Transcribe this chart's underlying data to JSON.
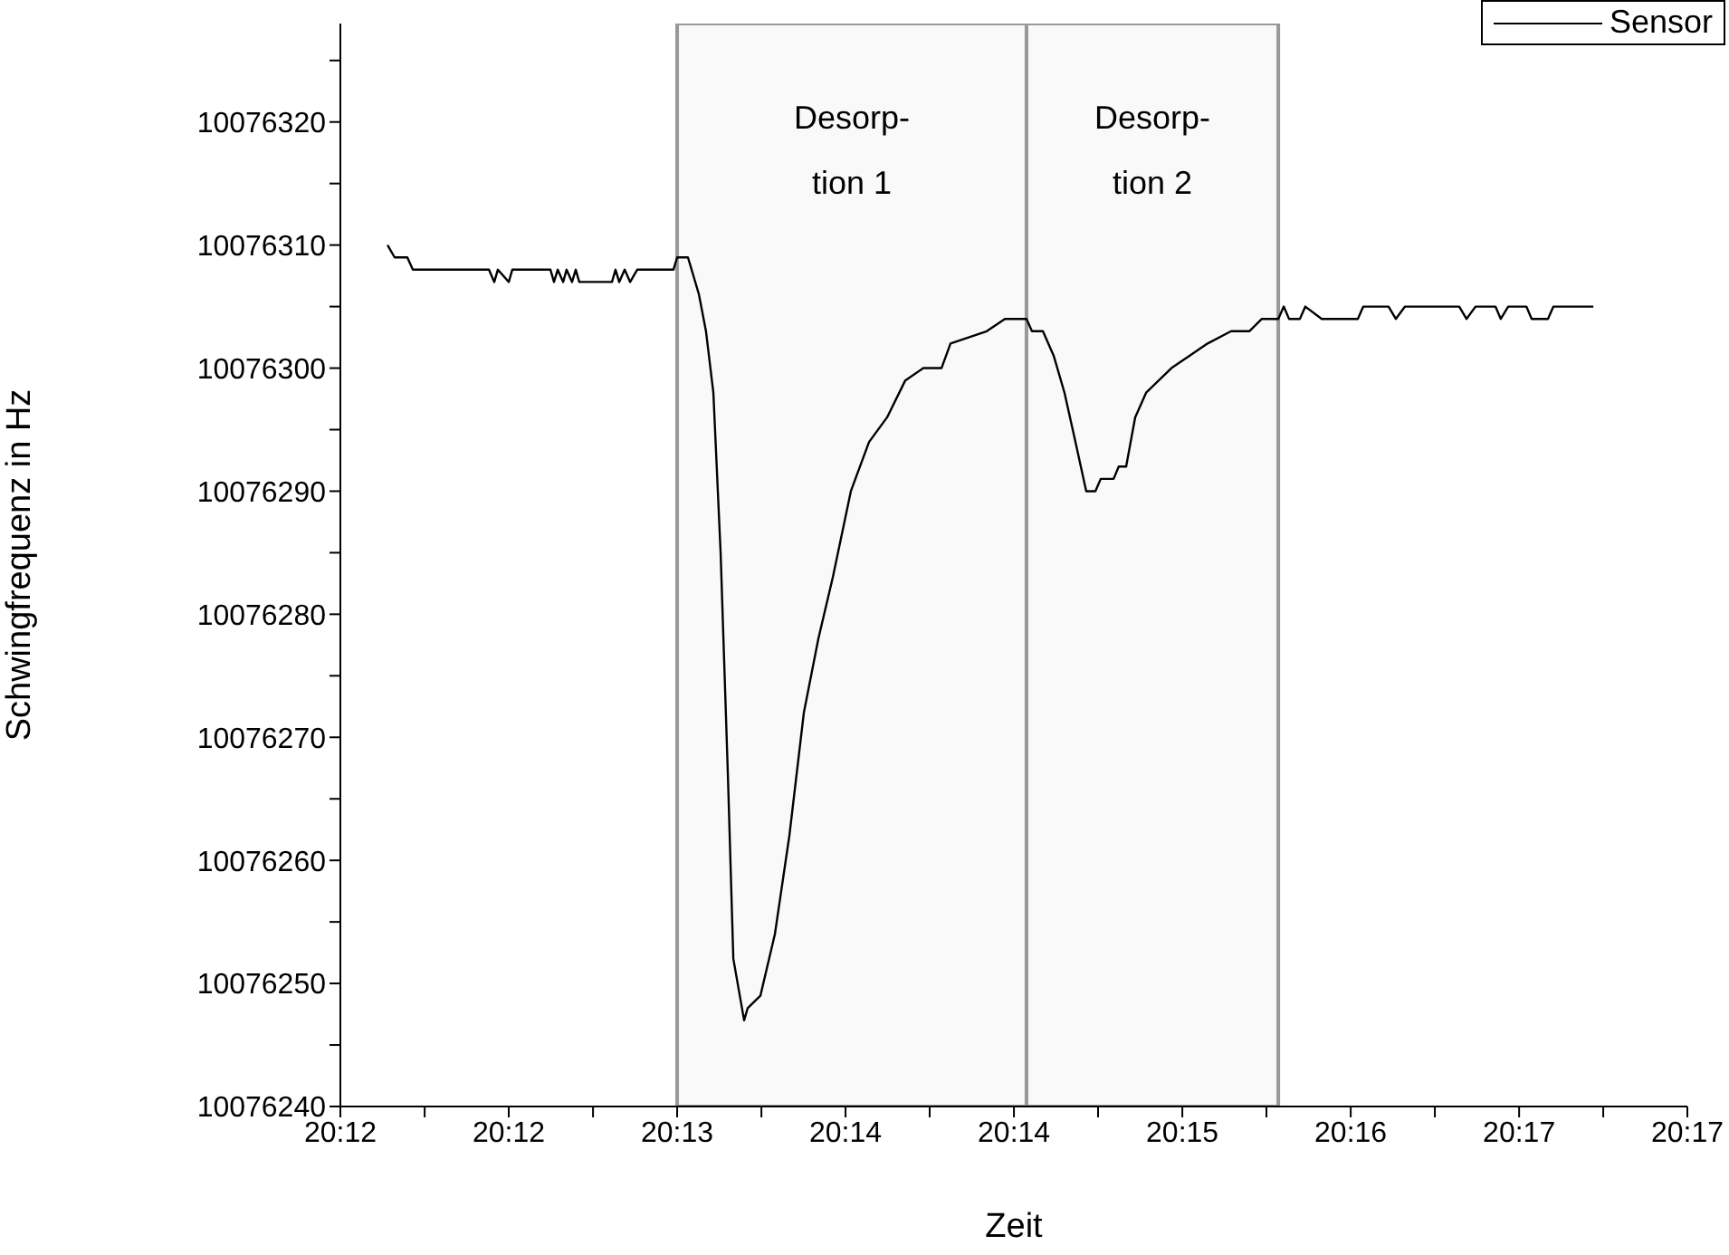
{
  "chart_data": {
    "type": "line",
    "xlabel": "Zeit",
    "ylabel": "Schwingfrequenz in Hz",
    "xlim": [
      20.19583,
      20.28694
    ],
    "xticks": [
      {
        "value": 20.19583,
        "label": "20:12"
      },
      {
        "value": 20.20153,
        "label": null
      },
      {
        "value": 20.20722,
        "label": "20:12"
      },
      {
        "value": 20.21292,
        "label": null
      },
      {
        "value": 20.21861,
        "label": "20:13"
      },
      {
        "value": 20.22431,
        "label": null
      },
      {
        "value": 20.23,
        "label": "20:14"
      },
      {
        "value": 20.23569,
        "label": null
      },
      {
        "value": 20.24139,
        "label": "20:14"
      },
      {
        "value": 20.24708,
        "label": null
      },
      {
        "value": 20.25278,
        "label": "20:15"
      },
      {
        "value": 20.25847,
        "label": null
      },
      {
        "value": 20.26417,
        "label": "20:16"
      },
      {
        "value": 20.26986,
        "label": null
      },
      {
        "value": 20.27556,
        "label": "20:17"
      },
      {
        "value": 20.28125,
        "label": null
      },
      {
        "value": 20.28694,
        "label": "20:17"
      }
    ],
    "ylim": [
      10076240,
      10076328
    ],
    "yticks": [
      10076240,
      {
        "value": 10076245,
        "label": null
      },
      10076250,
      {
        "value": 10076255,
        "label": null
      },
      10076260,
      {
        "value": 10076265,
        "label": null
      },
      10076270,
      {
        "value": 10076275,
        "label": null
      },
      10076280,
      {
        "value": 10076285,
        "label": null
      },
      10076290,
      {
        "value": 10076295,
        "label": null
      },
      10076300,
      {
        "value": 10076305,
        "label": null
      },
      10076310,
      {
        "value": 10076315,
        "label": null
      },
      10076320,
      {
        "value": 10076325,
        "label": null
      }
    ],
    "x": [
      20.19902,
      20.1995,
      20.20036,
      20.20073,
      20.20588,
      20.20624,
      20.20648,
      20.20722,
      20.20746,
      20.21004,
      20.21028,
      20.21053,
      20.2109,
      20.21113,
      20.2115,
      20.21175,
      20.21199,
      20.2142,
      20.21444,
      20.21469,
      20.21506,
      20.21543,
      20.21591,
      20.21836,
      20.21861,
      20.21934,
      20.22008,
      20.22056,
      20.22106,
      20.22155,
      20.22204,
      20.22241,
      20.22314,
      20.22338,
      20.22424,
      20.22522,
      20.2262,
      20.22718,
      20.22816,
      20.22914,
      20.23036,
      20.23159,
      20.23281,
      20.23404,
      20.23526,
      20.23649,
      20.2371,
      20.23955,
      20.24078,
      20.24224,
      20.24261,
      20.24335,
      20.24408,
      20.24481,
      20.24555,
      20.24628,
      20.2469,
      20.24726,
      20.24813,
      20.24848,
      20.24898,
      20.24959,
      20.25033,
      20.25204,
      20.25326,
      20.25449,
      20.25608,
      20.25731,
      20.25816,
      20.25927,
      20.25964,
      20.26,
      20.26073,
      20.2611,
      20.26221,
      20.26465,
      20.26502,
      20.26673,
      20.26722,
      20.26784,
      20.27151,
      20.272,
      20.27261,
      20.27396,
      20.27432,
      20.27482,
      20.27605,
      20.27641,
      20.27751,
      20.27788,
      20.28058
    ],
    "series": [
      {
        "name": "Sensor",
        "color": "#000000",
        "values": [
          10076310,
          10076309,
          10076309,
          10076308,
          10076308,
          10076307,
          10076308,
          10076307,
          10076308,
          10076308,
          10076307,
          10076308,
          10076307,
          10076308,
          10076307,
          10076308,
          10076307,
          10076307,
          10076308,
          10076307,
          10076308,
          10076307,
          10076308,
          10076308,
          10076309,
          10076309,
          10076306,
          10076303,
          10076298,
          10076285,
          10076267,
          10076252,
          10076247,
          10076248,
          10076249,
          10076254,
          10076262,
          10076272,
          10076278,
          10076283,
          10076290,
          10076294,
          10076296,
          10076299,
          10076300,
          10076300,
          10076302,
          10076303,
          10076304,
          10076304,
          10076303,
          10076303,
          10076301,
          10076298,
          10076294,
          10076290,
          10076290,
          10076291,
          10076291,
          10076292,
          10076292,
          10076296,
          10076298,
          10076300,
          10076301,
          10076302,
          10076303,
          10076303,
          10076304,
          10076304,
          10076305,
          10076304,
          10076304,
          10076305,
          10076304,
          10076304,
          10076305,
          10076305,
          10076304,
          10076305,
          10076305,
          10076304,
          10076305,
          10076305,
          10076304,
          10076305,
          10076305,
          10076304,
          10076304,
          10076305,
          10076305
        ]
      }
    ],
    "bands": [
      {
        "axis": "x",
        "from": 20.21861,
        "to": 20.24224,
        "label": "Desorp-\ntion 1",
        "color": "#999999"
      },
      {
        "axis": "x",
        "from": 20.24224,
        "to": 20.25927,
        "label": "Desorp-\ntion 2",
        "color": "#999999"
      }
    ],
    "legend": "top right",
    "marker": "none",
    "line_style": "solid",
    "grid": false
  }
}
